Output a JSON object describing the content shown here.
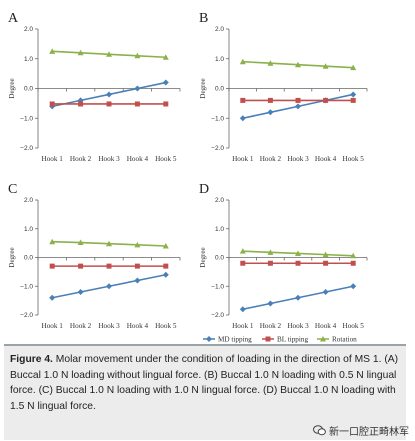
{
  "chart_data": [
    {
      "type": "line",
      "panel_letter": "A",
      "categories": [
        "Hook 1",
        "Hook 2",
        "Hook 3",
        "Hook 4",
        "Hook 5"
      ],
      "ylabel": "Degree",
      "ylim": [
        -2.0,
        2.0
      ],
      "yticks": [
        "2.0",
        "1.0",
        "0.0",
        "−1.0",
        "−2.0"
      ],
      "series": [
        {
          "name": "MD tipping",
          "values": [
            -0.6,
            -0.4,
            -0.2,
            0.0,
            0.2
          ]
        },
        {
          "name": "BL tipping",
          "values": [
            -0.52,
            -0.52,
            -0.52,
            -0.52,
            -0.52
          ]
        },
        {
          "name": "Rotation",
          "values": [
            1.25,
            1.2,
            1.15,
            1.1,
            1.05
          ]
        }
      ]
    },
    {
      "type": "line",
      "panel_letter": "B",
      "categories": [
        "Hook 1",
        "Hook 2",
        "Hook 3",
        "Hook 4",
        "Hook 5"
      ],
      "ylabel": "Degree",
      "ylim": [
        -2.0,
        2.0
      ],
      "yticks": [
        "2.0",
        "1.0",
        "0.0",
        "−1.0",
        "−2.0"
      ],
      "series": [
        {
          "name": "MD tipping",
          "values": [
            -1.0,
            -0.8,
            -0.6,
            -0.4,
            -0.2
          ]
        },
        {
          "name": "BL tipping",
          "values": [
            -0.4,
            -0.4,
            -0.4,
            -0.4,
            -0.4
          ]
        },
        {
          "name": "Rotation",
          "values": [
            0.9,
            0.85,
            0.8,
            0.75,
            0.7
          ]
        }
      ]
    },
    {
      "type": "line",
      "panel_letter": "C",
      "categories": [
        "Hook 1",
        "Hook 2",
        "Hook 3",
        "Hook 4",
        "Hook 5"
      ],
      "ylabel": "Degree",
      "ylim": [
        -2.0,
        2.0
      ],
      "yticks": [
        "2.0",
        "1.0",
        "0.0",
        "−1.0",
        "−2.0"
      ],
      "series": [
        {
          "name": "MD tipping",
          "values": [
            -1.4,
            -1.2,
            -1.0,
            -0.8,
            -0.6
          ]
        },
        {
          "name": "BL tipping",
          "values": [
            -0.3,
            -0.3,
            -0.3,
            -0.3,
            -0.3
          ]
        },
        {
          "name": "Rotation",
          "values": [
            0.55,
            0.52,
            0.48,
            0.44,
            0.4
          ]
        }
      ]
    },
    {
      "type": "line",
      "panel_letter": "D",
      "categories": [
        "Hook 1",
        "Hook 2",
        "Hook 3",
        "Hook 4",
        "Hook 5"
      ],
      "ylabel": "Degree",
      "ylim": [
        -2.0,
        2.0
      ],
      "yticks": [
        "2.0",
        "1.0",
        "0.0",
        "−1.0",
        "−2.0"
      ],
      "series": [
        {
          "name": "MD tipping",
          "values": [
            -1.8,
            -1.6,
            -1.4,
            -1.2,
            -1.0
          ]
        },
        {
          "name": "BL tipping",
          "values": [
            -0.2,
            -0.2,
            -0.2,
            -0.2,
            -0.2
          ]
        },
        {
          "name": "Rotation",
          "values": [
            0.22,
            0.18,
            0.14,
            0.1,
            0.06
          ]
        }
      ]
    }
  ],
  "legend": {
    "placement": "bottom-right",
    "items": [
      "MD tipping",
      "BL tipping",
      "Rotation"
    ]
  },
  "colors": {
    "md_tipping": "#4a7fb8",
    "bl_tipping": "#c0504d",
    "rotation": "#8ab14a",
    "axis": "#666666"
  },
  "caption": {
    "label": "Figure 4.",
    "text": "Molar movement under the condition of loading in the direction of MS 1. (A) Buccal 1.0 N loading without lingual force. (B) Buccal 1.0 N loading with 0.5 N lingual force. (C) Buccal 1.0 N loading with 1.0 N lingual force. (D) Buccal 1.0 N loading with 1.5 N lingual force."
  },
  "watermark": {
    "text": "新一口腔正畸林军"
  }
}
